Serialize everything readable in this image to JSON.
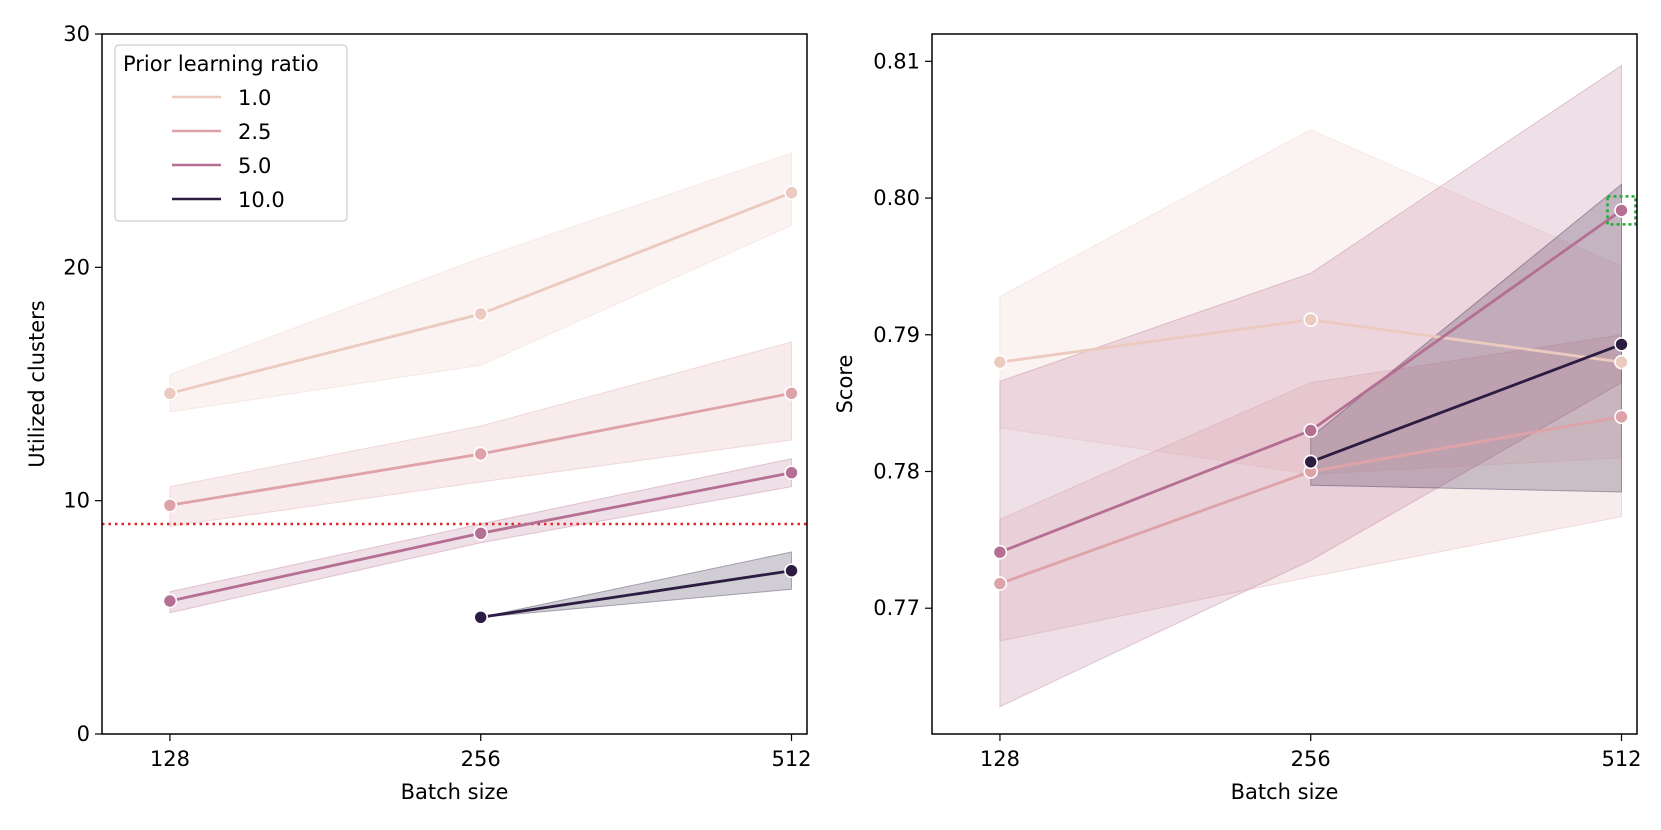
{
  "colors": {
    "1.0": "#eccac0",
    "2.5": "#dea3a9",
    "5.0": "#b46f93",
    "10.0": "#2c1c41",
    "reference": "#e0262b",
    "highlight": "#22aa33"
  },
  "legend": {
    "title": "Prior learning ratio",
    "entries": [
      "1.0",
      "2.5",
      "5.0",
      "10.0"
    ]
  },
  "chart_data": [
    {
      "type": "line",
      "xlabel": "Batch size",
      "ylabel": "Utilized clusters",
      "categories": [
        "128",
        "256",
        "512"
      ],
      "x": [
        128,
        256,
        512
      ],
      "xlim": [
        110,
        530
      ],
      "ylim": [
        0,
        30
      ],
      "yticks": [
        0,
        10,
        20,
        30
      ],
      "ytick_labels": [
        "0",
        "10",
        "20",
        "30"
      ],
      "legend_position": "upper-left",
      "reference_line": {
        "y": 9,
        "style": "dotted",
        "color": "red"
      },
      "series": [
        {
          "name": "1.0",
          "x": [
            128,
            256,
            512
          ],
          "values": [
            14.6,
            18.0,
            23.2
          ],
          "ci_low": [
            13.8,
            15.8,
            21.8
          ],
          "ci_high": [
            15.4,
            20.4,
            24.9
          ]
        },
        {
          "name": "2.5",
          "x": [
            128,
            256,
            512
          ],
          "values": [
            9.8,
            12.0,
            14.6
          ],
          "ci_low": [
            8.9,
            10.8,
            12.6
          ],
          "ci_high": [
            10.6,
            13.2,
            16.8
          ]
        },
        {
          "name": "5.0",
          "x": [
            128,
            256,
            512
          ],
          "values": [
            5.7,
            8.6,
            11.2
          ],
          "ci_low": [
            5.2,
            8.2,
            10.6
          ],
          "ci_high": [
            6.1,
            9.0,
            11.8
          ]
        },
        {
          "name": "10.0",
          "x": [
            256,
            512
          ],
          "values": [
            5.0,
            7.0
          ],
          "ci_low": [
            5.0,
            6.2
          ],
          "ci_high": [
            5.0,
            7.8
          ]
        }
      ]
    },
    {
      "type": "line",
      "xlabel": "Batch size",
      "ylabel": "Score",
      "categories": [
        "128",
        "256",
        "512"
      ],
      "x": [
        128,
        256,
        512
      ],
      "xlim": [
        110,
        530
      ],
      "ylim": [
        0.7608,
        0.812
      ],
      "yticks": [
        0.77,
        0.78,
        0.79,
        0.8,
        0.81
      ],
      "ytick_labels": [
        "0.77",
        "0.78",
        "0.79",
        "0.80",
        "0.81"
      ],
      "highlight": {
        "series": "5.0",
        "x": 512
      },
      "series": [
        {
          "name": "1.0",
          "x": [
            128,
            256,
            512
          ],
          "values": [
            0.788,
            0.7911,
            0.788
          ],
          "ci_low": [
            0.7832,
            0.7798,
            0.781
          ],
          "ci_high": [
            0.7928,
            0.805,
            0.795
          ]
        },
        {
          "name": "2.5",
          "x": [
            128,
            256,
            512
          ],
          "values": [
            0.7718,
            0.78,
            0.784
          ],
          "ci_low": [
            0.7676,
            0.7723,
            0.7767
          ],
          "ci_high": [
            0.7765,
            0.7865,
            0.79
          ]
        },
        {
          "name": "5.0",
          "x": [
            128,
            256,
            512
          ],
          "values": [
            0.7741,
            0.783,
            0.7991
          ],
          "ci_low": [
            0.7628,
            0.7735,
            0.7865
          ],
          "ci_high": [
            0.7866,
            0.7945,
            0.8097
          ]
        },
        {
          "name": "10.0",
          "x": [
            256,
            512
          ],
          "values": [
            0.7807,
            0.7893
          ],
          "ci_low": [
            0.779,
            0.7785
          ],
          "ci_high": [
            0.7825,
            0.801
          ]
        }
      ]
    }
  ]
}
